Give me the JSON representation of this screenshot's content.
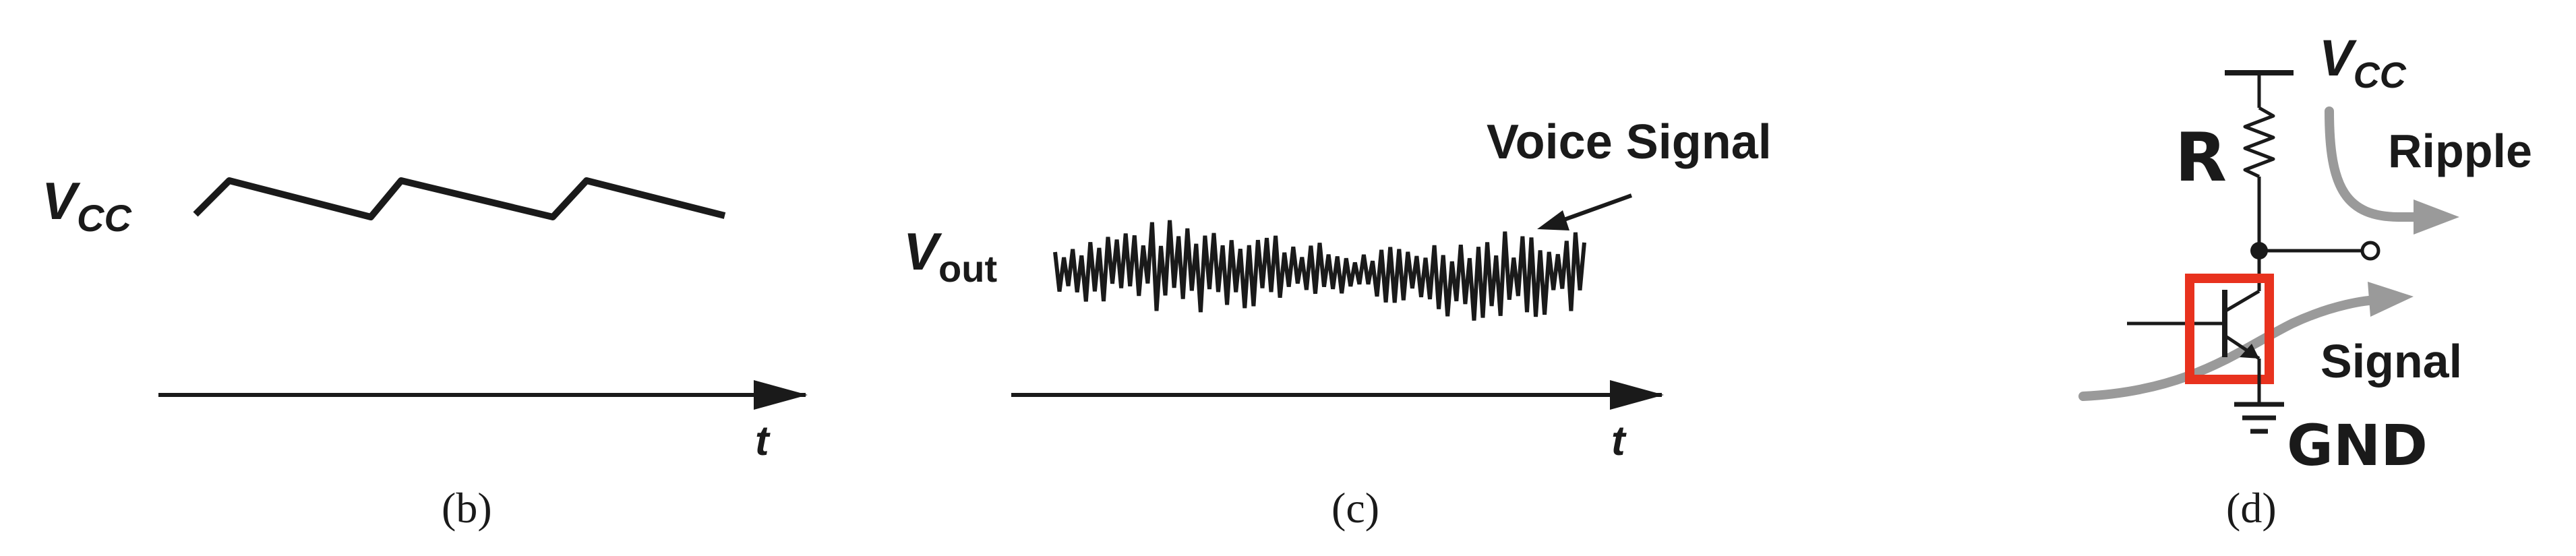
{
  "panel_b": {
    "caption": "(b)",
    "supply_label_main": "V",
    "supply_label_sub": "CC",
    "time_label": "t"
  },
  "panel_c": {
    "caption": "(c)",
    "output_label_main": "V",
    "output_label_sub": "out",
    "time_label": "t",
    "annotation": "Voice Signal"
  },
  "panel_d": {
    "caption": "(d)",
    "supply_label_main": "V",
    "supply_label_sub": "CC",
    "resistor_label": "R",
    "ripple_label": "Ripple",
    "signal_label": "Signal",
    "ground_label": "GND",
    "highlight_color": "#e8321e",
    "arrow_color": "#9a9a9a"
  }
}
